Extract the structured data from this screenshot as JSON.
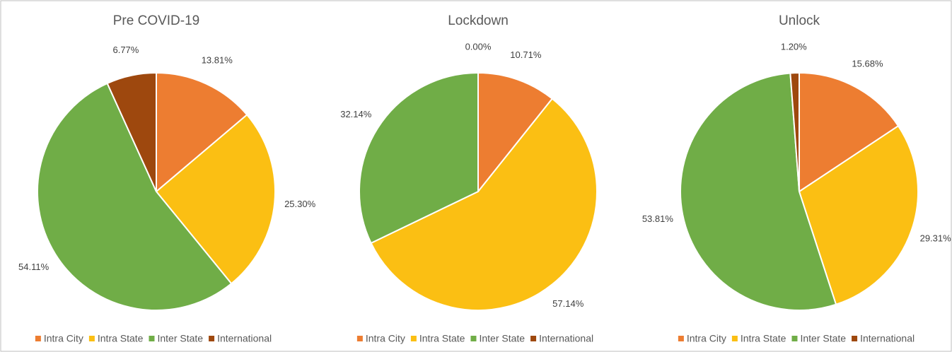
{
  "chart_data": [
    {
      "type": "pie",
      "title": "Pre COVID-19",
      "categories": [
        "Intra City",
        "Intra State",
        "Inter State",
        "International"
      ],
      "values": [
        13.81,
        25.3,
        54.11,
        6.77
      ],
      "value_labels": [
        "13.81%",
        "25.30%",
        "54.11%",
        "6.77%"
      ],
      "colors": [
        "#ed7d31",
        "#fbbf13",
        "#70ad47",
        "#9e480e"
      ],
      "legend": "bottom"
    },
    {
      "type": "pie",
      "title": "Lockdown",
      "categories": [
        "Intra City",
        "Intra State",
        "Inter State",
        "International"
      ],
      "values": [
        10.71,
        57.14,
        32.14,
        0.0
      ],
      "value_labels": [
        "10.71%",
        "57.14%",
        "32.14%",
        "0.00%"
      ],
      "colors": [
        "#ed7d31",
        "#fbbf13",
        "#70ad47",
        "#9e480e"
      ],
      "legend": "bottom"
    },
    {
      "type": "pie",
      "title": "Unlock",
      "categories": [
        "Intra City",
        "Intra State",
        "Inter State",
        "International"
      ],
      "values": [
        15.68,
        29.31,
        53.81,
        1.2
      ],
      "value_labels": [
        "15.68%",
        "29.31%",
        "53.81%",
        "1.20%"
      ],
      "colors": [
        "#ed7d31",
        "#fbbf13",
        "#70ad47",
        "#9e480e"
      ],
      "legend": "bottom"
    }
  ]
}
